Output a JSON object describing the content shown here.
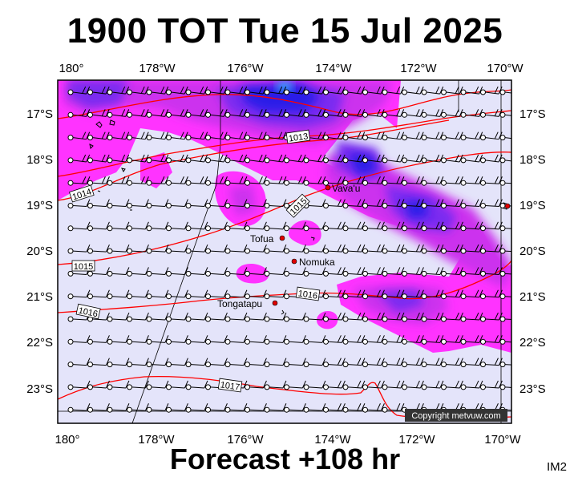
{
  "title": "1900 TOT Tue 15 Jul 2025",
  "footer": "Forecast +108 hr",
  "tag": "IM2",
  "copyright": "Copyright metvuw.com",
  "colors": {
    "background_rain_free": "#e4e4fa",
    "rain_light": "#ff33ff",
    "rain_medium": "#cc33ee",
    "rain_heavy": "#7a2bf0",
    "rain_extreme": "#2a1de8",
    "rain_peak": "#33ccff",
    "isobar": "#ff0000"
  },
  "axes": {
    "lon_labels": [
      "180°",
      "178°W",
      "176°W",
      "174°W",
      "172°W",
      "170°W"
    ],
    "lat_labels": [
      "17°S",
      "18°S",
      "19°S",
      "20°S",
      "21°S",
      "22°S",
      "23°S"
    ]
  },
  "isobars": [
    {
      "label": "1013"
    },
    {
      "label": "1014"
    },
    {
      "label": "1015"
    },
    {
      "label": "1015"
    },
    {
      "label": "1016"
    },
    {
      "label": "1016"
    },
    {
      "label": "1017"
    }
  ],
  "places": [
    {
      "name": "Vava'u"
    },
    {
      "name": "Tofua"
    },
    {
      "name": "Nomuka"
    },
    {
      "name": "Tongatapu"
    }
  ]
}
